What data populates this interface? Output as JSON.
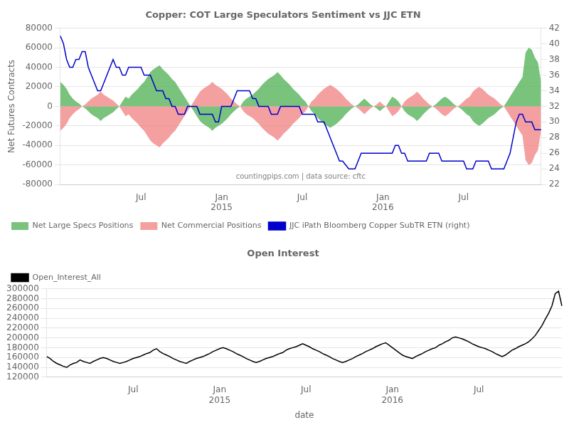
{
  "chart_data": [
    {
      "type": "area",
      "title": "Copper: COT Large Speculators Sentiment vs JJC ETN",
      "ylabel": "Net Futures Contracts",
      "categories": [
        null,
        null,
        null,
        null,
        null,
        null,
        null,
        null,
        null,
        null,
        null,
        null,
        null,
        null,
        null,
        null,
        null,
        null,
        null,
        null,
        null,
        null,
        null,
        null,
        null,
        null,
        "Jul",
        null,
        null,
        null,
        null,
        null,
        null,
        null,
        null,
        null,
        null,
        null,
        null,
        null,
        null,
        null,
        null,
        null,
        null,
        null,
        null,
        null,
        null,
        null,
        null,
        null,
        "Jan\n2015",
        null,
        null,
        null,
        null,
        null,
        null,
        null,
        null,
        null,
        null,
        null,
        null,
        null,
        null,
        null,
        null,
        null,
        null,
        null,
        null,
        null,
        null,
        null,
        null,
        null,
        "Jul",
        null,
        null,
        null,
        null,
        null,
        null,
        null,
        null,
        null,
        null,
        null,
        null,
        null,
        null,
        null,
        null,
        null,
        null,
        null,
        null,
        null,
        null,
        null,
        null,
        null,
        "Jan\n2016",
        null,
        null,
        null,
        null,
        null,
        null,
        null,
        null,
        null,
        null,
        null,
        null,
        null,
        null,
        null,
        null,
        null,
        null,
        null,
        null,
        null,
        null,
        null,
        null,
        null,
        "Jul",
        null,
        null,
        null,
        null,
        null,
        null,
        null,
        null,
        null,
        null,
        null,
        null,
        null,
        null,
        null,
        null,
        null,
        null,
        null,
        null,
        null,
        null,
        null,
        null,
        null
      ],
      "series": [
        {
          "name": "Net Large Specs Positions",
          "type": "area",
          "color": "#4CAF50",
          "values": [
            25000,
            22000,
            18000,
            12000,
            8000,
            5000,
            3000,
            0,
            -2000,
            -5000,
            -8000,
            -10000,
            -12000,
            -15000,
            -12000,
            -10000,
            -8000,
            -6000,
            -3000,
            0,
            5000,
            10000,
            8000,
            12000,
            15000,
            18000,
            22000,
            25000,
            30000,
            35000,
            38000,
            40000,
            42000,
            38000,
            35000,
            32000,
            28000,
            25000,
            20000,
            15000,
            10000,
            5000,
            0,
            -5000,
            -10000,
            -15000,
            -18000,
            -20000,
            -22000,
            -25000,
            -22000,
            -20000,
            -18000,
            -15000,
            -12000,
            -8000,
            -5000,
            -2000,
            0,
            5000,
            8000,
            10000,
            12000,
            15000,
            18000,
            22000,
            25000,
            28000,
            30000,
            32000,
            35000,
            32000,
            28000,
            25000,
            22000,
            18000,
            15000,
            12000,
            8000,
            5000,
            0,
            -5000,
            -8000,
            -12000,
            -15000,
            -18000,
            -20000,
            -22000,
            -20000,
            -18000,
            -15000,
            -12000,
            -8000,
            -5000,
            -2000,
            0,
            2000,
            5000,
            8000,
            5000,
            2000,
            0,
            -2000,
            -5000,
            -2000,
            0,
            5000,
            10000,
            8000,
            5000,
            0,
            -5000,
            -8000,
            -10000,
            -12000,
            -15000,
            -12000,
            -8000,
            -5000,
            -2000,
            0,
            2000,
            5000,
            8000,
            10000,
            8000,
            5000,
            2000,
            0,
            -2000,
            -5000,
            -8000,
            -10000,
            -15000,
            -18000,
            -20000,
            -18000,
            -15000,
            -12000,
            -10000,
            -8000,
            -5000,
            -2000,
            0,
            5000,
            10000,
            15000,
            20000,
            25000,
            30000,
            55000,
            60000,
            58000,
            50000,
            45000,
            25000
          ]
        },
        {
          "name": "Net Commercial Positions",
          "type": "area",
          "color": "#F08080",
          "values": [
            -25000,
            -22000,
            -18000,
            -12000,
            -8000,
            -5000,
            -3000,
            0,
            2000,
            5000,
            8000,
            10000,
            12000,
            15000,
            12000,
            10000,
            8000,
            6000,
            3000,
            0,
            -5000,
            -10000,
            -8000,
            -12000,
            -15000,
            -18000,
            -22000,
            -25000,
            -30000,
            -35000,
            -38000,
            -40000,
            -42000,
            -38000,
            -35000,
            -32000,
            -28000,
            -25000,
            -20000,
            -15000,
            -10000,
            -5000,
            0,
            5000,
            10000,
            15000,
            18000,
            20000,
            22000,
            25000,
            22000,
            20000,
            18000,
            15000,
            12000,
            8000,
            5000,
            2000,
            0,
            -5000,
            -8000,
            -10000,
            -12000,
            -15000,
            -18000,
            -22000,
            -25000,
            -28000,
            -30000,
            -32000,
            -35000,
            -32000,
            -28000,
            -25000,
            -22000,
            -18000,
            -15000,
            -12000,
            -8000,
            -5000,
            0,
            5000,
            8000,
            12000,
            15000,
            18000,
            20000,
            22000,
            20000,
            18000,
            15000,
            12000,
            8000,
            5000,
            2000,
            0,
            -2000,
            -5000,
            -8000,
            -5000,
            -2000,
            0,
            2000,
            5000,
            2000,
            0,
            -5000,
            -10000,
            -8000,
            -5000,
            0,
            5000,
            8000,
            10000,
            12000,
            15000,
            12000,
            8000,
            5000,
            2000,
            0,
            -2000,
            -5000,
            -8000,
            -10000,
            -8000,
            -5000,
            -2000,
            0,
            2000,
            5000,
            8000,
            10000,
            15000,
            18000,
            20000,
            18000,
            15000,
            12000,
            10000,
            8000,
            5000,
            2000,
            0,
            -5000,
            -10000,
            -15000,
            -20000,
            -25000,
            -30000,
            -55000,
            -60000,
            -58000,
            -50000,
            -45000,
            -25000
          ]
        },
        {
          "name": "JJC iPath Bloomberg Copper SubTR ETN (right)",
          "type": "line",
          "axis": "y2",
          "color": "#0000CC",
          "values": [
            41,
            40,
            38,
            37,
            37,
            38,
            38,
            39,
            39,
            37,
            36,
            35,
            34,
            34,
            35,
            36,
            37,
            38,
            37,
            37,
            36,
            36,
            37,
            37,
            37,
            37,
            37,
            36,
            36,
            36,
            35,
            34,
            34,
            34,
            33,
            33,
            32,
            32,
            31,
            31,
            31,
            32,
            32,
            32,
            32,
            31,
            31,
            31,
            31,
            31,
            30,
            30,
            32,
            32,
            32,
            32,
            33,
            34,
            34,
            34,
            34,
            34,
            33,
            33,
            32,
            32,
            32,
            32,
            31,
            31,
            31,
            32,
            32,
            32,
            32,
            32,
            32,
            32,
            31,
            31,
            31,
            31,
            31,
            30,
            30,
            30,
            29,
            28,
            27,
            26,
            25,
            25,
            24.5,
            24,
            24,
            24,
            25,
            26,
            26,
            26,
            26,
            26,
            26,
            26,
            26,
            26,
            26,
            26,
            27,
            27,
            26,
            26,
            25,
            25,
            25,
            25,
            25,
            25,
            25,
            26,
            26,
            26,
            26,
            25,
            25,
            25,
            25,
            25,
            25,
            25,
            25,
            24,
            24,
            24,
            25,
            25,
            25,
            25,
            25,
            24,
            24,
            24,
            24,
            24,
            25,
            26,
            28,
            30,
            31,
            31,
            30,
            30,
            30,
            29,
            29,
            29
          ]
        }
      ],
      "ylim": [
        -80000,
        80000
      ],
      "yticks": [
        -80000,
        -60000,
        -40000,
        -20000,
        0,
        20000,
        40000,
        60000,
        80000
      ],
      "y2lim": [
        22,
        42
      ],
      "y2ticks": [
        22,
        24,
        26,
        28,
        30,
        32,
        34,
        36,
        38,
        40,
        42
      ],
      "grid": true,
      "legend": "lower left",
      "annotations": [
        "countingpips.com | data source: cftc"
      ]
    },
    {
      "type": "line",
      "title": "Open Interest",
      "xlabel": "date",
      "categories": [
        null,
        null,
        null,
        null,
        null,
        null,
        null,
        null,
        null,
        null,
        null,
        null,
        null,
        null,
        null,
        null,
        null,
        null,
        null,
        null,
        null,
        null,
        null,
        null,
        null,
        null,
        "Jul",
        null,
        null,
        null,
        null,
        null,
        null,
        null,
        null,
        null,
        null,
        null,
        null,
        null,
        null,
        null,
        null,
        null,
        null,
        null,
        null,
        null,
        null,
        null,
        null,
        null,
        "Jan\n2015",
        null,
        null,
        null,
        null,
        null,
        null,
        null,
        null,
        null,
        null,
        null,
        null,
        null,
        null,
        null,
        null,
        null,
        null,
        null,
        null,
        null,
        null,
        null,
        null,
        null,
        "Jul",
        null,
        null,
        null,
        null,
        null,
        null,
        null,
        null,
        null,
        null,
        null,
        null,
        null,
        null,
        null,
        null,
        null,
        null,
        null,
        null,
        null,
        null,
        null,
        null,
        null,
        "Jan\n2016",
        null,
        null,
        null,
        null,
        null,
        null,
        null,
        null,
        null,
        null,
        null,
        null,
        null,
        null,
        null,
        null,
        null,
        null,
        null,
        null,
        null,
        null,
        null,
        null,
        null,
        "Jul",
        null,
        null,
        null,
        null,
        null,
        null,
        null,
        null,
        null,
        null,
        null,
        null,
        null,
        null,
        null,
        null,
        null,
        null,
        null,
        null,
        null,
        null,
        null,
        null,
        null
      ],
      "series": [
        {
          "name": "Open_Interest_All",
          "color": "#000000",
          "values": [
            162000,
            158000,
            152000,
            148000,
            145000,
            142000,
            140000,
            145000,
            148000,
            150000,
            155000,
            152000,
            150000,
            148000,
            152000,
            155000,
            158000,
            160000,
            158000,
            155000,
            152000,
            150000,
            148000,
            150000,
            152000,
            155000,
            158000,
            160000,
            162000,
            165000,
            168000,
            170000,
            175000,
            178000,
            172000,
            168000,
            165000,
            162000,
            158000,
            155000,
            152000,
            150000,
            148000,
            152000,
            155000,
            158000,
            160000,
            162000,
            165000,
            168000,
            172000,
            175000,
            178000,
            180000,
            178000,
            175000,
            172000,
            168000,
            165000,
            162000,
            158000,
            155000,
            152000,
            150000,
            152000,
            155000,
            158000,
            160000,
            162000,
            165000,
            168000,
            170000,
            175000,
            178000,
            180000,
            182000,
            185000,
            188000,
            185000,
            182000,
            178000,
            175000,
            172000,
            168000,
            165000,
            162000,
            158000,
            155000,
            152000,
            150000,
            152000,
            155000,
            158000,
            162000,
            165000,
            168000,
            172000,
            175000,
            178000,
            182000,
            185000,
            188000,
            190000,
            185000,
            180000,
            175000,
            170000,
            165000,
            162000,
            160000,
            158000,
            162000,
            165000,
            168000,
            172000,
            175000,
            178000,
            180000,
            185000,
            188000,
            192000,
            195000,
            200000,
            202000,
            200000,
            198000,
            195000,
            192000,
            188000,
            185000,
            182000,
            180000,
            178000,
            175000,
            172000,
            168000,
            165000,
            162000,
            165000,
            170000,
            175000,
            178000,
            182000,
            185000,
            188000,
            192000,
            198000,
            205000,
            215000,
            225000,
            238000,
            250000,
            265000,
            290000,
            295000,
            265000
          ]
        }
      ],
      "ylim": [
        120000,
        300000
      ],
      "yticks": [
        120000,
        140000,
        160000,
        180000,
        200000,
        220000,
        240000,
        260000,
        280000,
        300000
      ],
      "grid": true,
      "legend": "upper left"
    }
  ]
}
